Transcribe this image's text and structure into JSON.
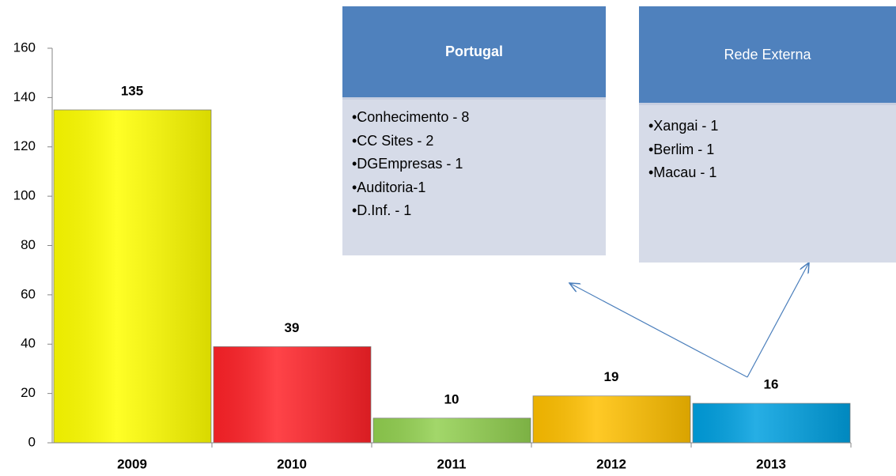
{
  "chart_data": {
    "type": "bar",
    "categories": [
      "2009",
      "2010",
      "2011",
      "2012",
      "2013"
    ],
    "values": [
      135,
      39,
      10,
      19,
      16
    ],
    "colors": [
      "#ffff00",
      "#ff2228",
      "#92d050",
      "#ffc000",
      "#00a0e0"
    ],
    "ylim": [
      0,
      160
    ],
    "yticks": [
      0,
      20,
      40,
      60,
      80,
      100,
      120,
      140,
      160
    ],
    "annotations": [
      {
        "title": "Portugal",
        "items": [
          "•Conhecimento  - 8",
          "•CC Sites - 2",
          "•DGEmpresas - 1",
          "•Auditoria-1",
          "•D.Inf. - 1"
        ]
      },
      {
        "title": "Rede Externa",
        "items": [
          "•Xangai - 1",
          "•Berlim - 1",
          "•Macau - 1"
        ]
      }
    ]
  }
}
